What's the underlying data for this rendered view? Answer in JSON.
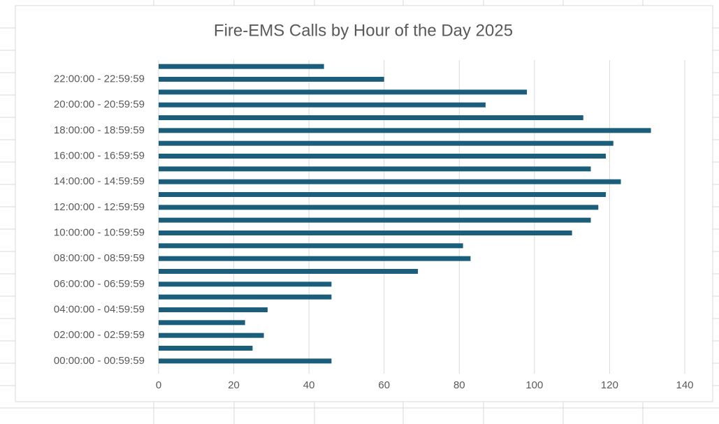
{
  "chart_data": {
    "type": "bar",
    "orientation": "horizontal",
    "title": "Fire-EMS Calls by Hour of the Day 2025",
    "categories": [
      "00:00:00 - 00:59:59",
      null,
      "02:00:00 - 02:59:59",
      null,
      "04:00:00 - 04:59:59",
      null,
      "06:00:00 - 06:59:59",
      null,
      "08:00:00 - 08:59:59",
      null,
      "10:00:00 - 10:59:59",
      null,
      "12:00:00 - 12:59:59",
      null,
      "14:00:00 - 14:59:59",
      null,
      "16:00:00 - 16:59:59",
      null,
      "18:00:00 - 18:59:59",
      null,
      "20:00:00 - 20:59:59",
      null,
      "22:00:00 - 22:59:59",
      null
    ],
    "values": [
      46,
      25,
      28,
      23,
      29,
      46,
      46,
      69,
      83,
      81,
      110,
      115,
      117,
      119,
      123,
      115,
      119,
      121,
      131,
      113,
      87,
      98,
      60,
      44
    ],
    "color": "#1b5e7b",
    "xlim": [
      0,
      140
    ],
    "xticks": [
      0,
      20,
      40,
      60,
      80,
      100,
      120,
      140
    ],
    "grid": true
  }
}
